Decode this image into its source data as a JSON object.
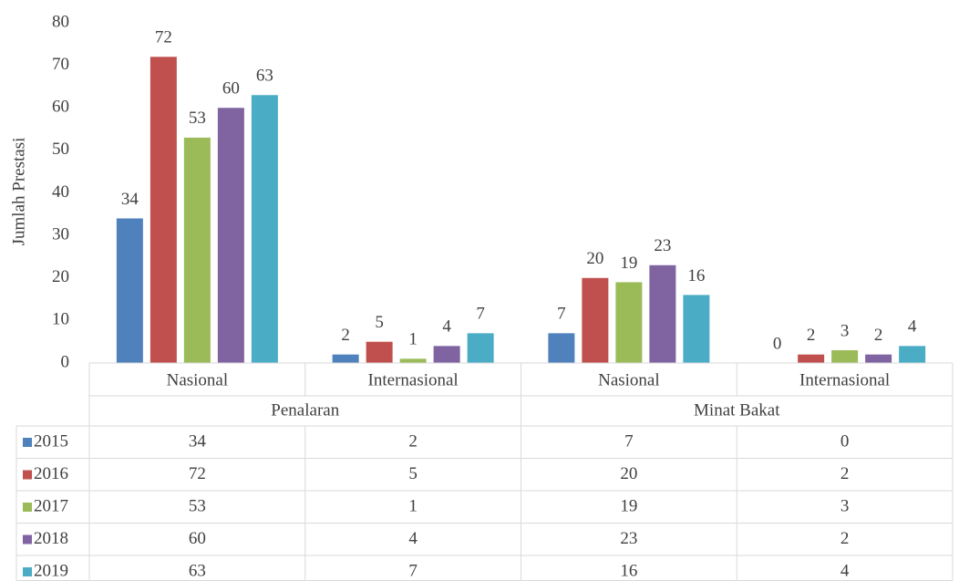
{
  "chart_data": {
    "type": "bar",
    "y_axis_label": "Jumlah Prestasi",
    "categories": [
      "Nasional",
      "Internasional",
      "Nasional",
      "Internasional"
    ],
    "groups": [
      "Penalaran",
      "Minat Bakat"
    ],
    "series": [
      {
        "name": "2015",
        "color": "#4f81bd",
        "values": [
          34,
          2,
          7,
          0
        ]
      },
      {
        "name": "2016",
        "color": "#c0504d",
        "values": [
          72,
          5,
          20,
          2
        ]
      },
      {
        "name": "2017",
        "color": "#9bbb59",
        "values": [
          53,
          1,
          19,
          3
        ]
      },
      {
        "name": "2018",
        "color": "#8064a2",
        "values": [
          60,
          4,
          23,
          2
        ]
      },
      {
        "name": "2019",
        "color": "#4bacc6",
        "values": [
          63,
          7,
          16,
          4
        ]
      }
    ],
    "ylim": [
      0,
      80
    ],
    "yticks": [
      0,
      10,
      20,
      30,
      40,
      50,
      60,
      70,
      80
    ],
    "grid": false
  }
}
